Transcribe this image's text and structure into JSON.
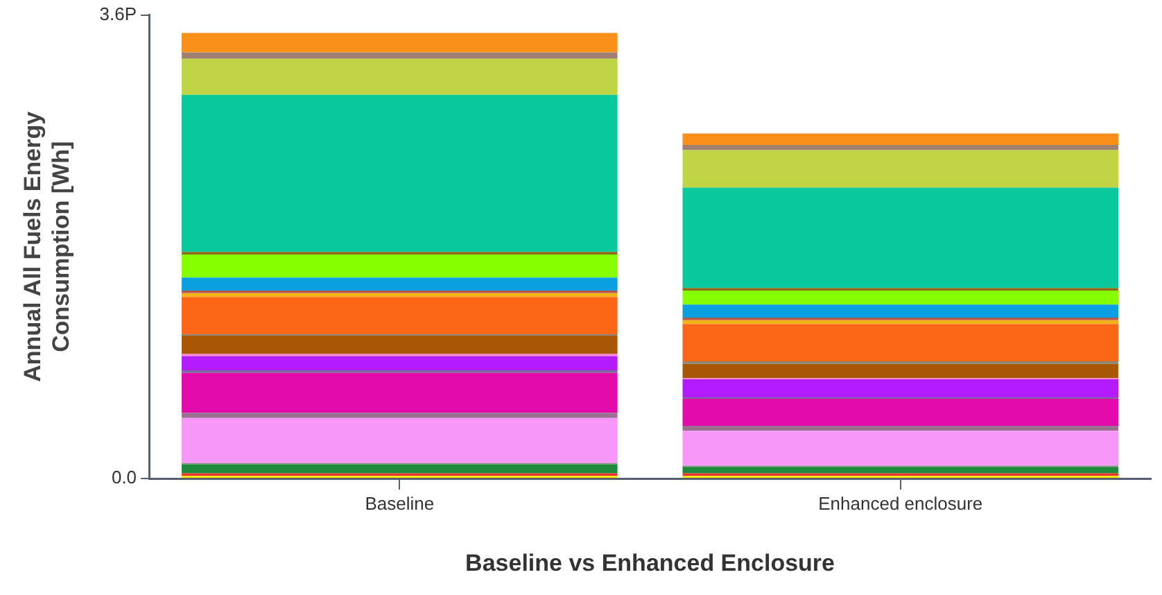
{
  "chart_data": {
    "type": "bar",
    "stacked": true,
    "xlabel": "Baseline vs Enhanced Enclosure",
    "ylabel": "Annual All Fuels Energy Consumption [Wh]",
    "categories": [
      "Baseline",
      "Enhanced enclosure"
    ],
    "ylim": [
      0,
      3.6
    ],
    "yticks": [
      {
        "value": 0,
        "label": "0.0"
      },
      {
        "value": 3.6,
        "label": "3.6P"
      }
    ],
    "grid": false,
    "series": [
      {
        "color": "#ffe800",
        "values": [
          0.02,
          0.02
        ]
      },
      {
        "color": "#e8332a",
        "values": [
          0.02,
          0.02
        ]
      },
      {
        "color": "#1f8a3c",
        "values": [
          0.07,
          0.05
        ]
      },
      {
        "color": "#8c8c8c",
        "values": [
          0.01,
          0.01
        ]
      },
      {
        "color": "#f797f7",
        "values": [
          0.35,
          0.27
        ]
      },
      {
        "color": "#9a6f8f",
        "values": [
          0.04,
          0.04
        ]
      },
      {
        "color": "#e40bad",
        "values": [
          0.31,
          0.21
        ]
      },
      {
        "color": "#7a6a9a",
        "values": [
          0.02,
          0.01
        ]
      },
      {
        "color": "#b21cff",
        "values": [
          0.11,
          0.14
        ]
      },
      {
        "color": "#f58cc8",
        "values": [
          0.02,
          0.01
        ]
      },
      {
        "color": "#aa5705",
        "values": [
          0.14,
          0.11
        ]
      },
      {
        "color": "#8a8a7a",
        "values": [
          0.01,
          0.02
        ]
      },
      {
        "color": "#fc6717",
        "values": [
          0.29,
          0.29
        ]
      },
      {
        "color": "#f2b21a",
        "values": [
          0.03,
          0.03
        ]
      },
      {
        "color": "#b55a4a",
        "values": [
          0.02,
          0.02
        ]
      },
      {
        "color": "#0aa0e0",
        "values": [
          0.1,
          0.1
        ]
      },
      {
        "color": "#86ff00",
        "values": [
          0.18,
          0.11
        ]
      },
      {
        "color": "#8a6a1a",
        "values": [
          0.02,
          0.02
        ]
      },
      {
        "color": "#08c89c",
        "values": [
          1.22,
          0.78
        ]
      },
      {
        "color": "#c0d543",
        "values": [
          0.28,
          0.29
        ]
      },
      {
        "color": "#a08070",
        "values": [
          0.05,
          0.04
        ]
      },
      {
        "color": "#fa8f1a",
        "values": [
          0.15,
          0.09
        ]
      }
    ]
  }
}
